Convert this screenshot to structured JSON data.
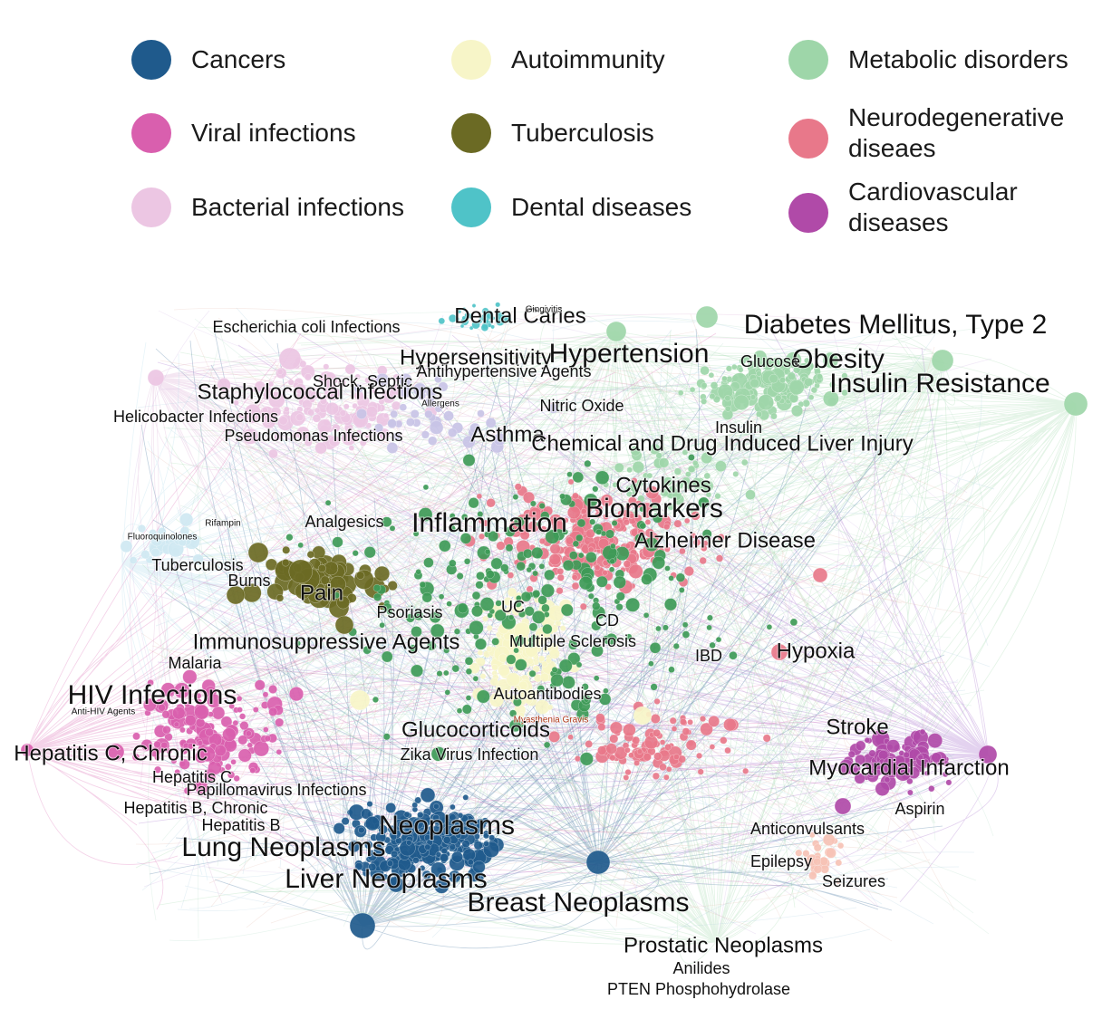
{
  "legend": [
    {
      "label": "Cancers",
      "color": "#1f5a8c"
    },
    {
      "label": "Autoimmunity",
      "color": "#f7f5c8"
    },
    {
      "label": "Metabolic disorders",
      "color": "#9ed6a9"
    },
    {
      "label": "Viral infections",
      "color": "#d95fae"
    },
    {
      "label": "Tuberculosis",
      "color": "#6b6a24"
    },
    {
      "label": "Neurodegenerative\ndiseaes",
      "color": "#e8788a"
    },
    {
      "label": "Bacterial infections",
      "color": "#ecc6e3"
    },
    {
      "label": "Dental diseases",
      "color": "#4fc3c8"
    },
    {
      "label": "Cardiovascular\ndiseases",
      "color": "#b04aa8"
    }
  ],
  "network": {
    "labels": [
      {
        "text": "Dental Caries",
        "size": "m"
      },
      {
        "text": "Gingivitis",
        "size": "xs"
      },
      {
        "text": "Escherichia coli Infections",
        "size": "s"
      },
      {
        "text": "Diabetes Mellitus, Type 2",
        "size": "l"
      },
      {
        "text": "Hypersensitivity",
        "size": "m"
      },
      {
        "text": "Hypertension",
        "size": "l"
      },
      {
        "text": "Obesity",
        "size": "l"
      },
      {
        "text": "Glucose",
        "size": "s"
      },
      {
        "text": "Shock, Septic",
        "size": "s"
      },
      {
        "text": "Antihypertensive Agents",
        "size": "s"
      },
      {
        "text": "Staphylococcal Infections",
        "size": "m"
      },
      {
        "text": "Insulin Resistance",
        "size": "l"
      },
      {
        "text": "Allergens",
        "size": "xs"
      },
      {
        "text": "Nitric Oxide",
        "size": "s"
      },
      {
        "text": "Helicobacter Infections",
        "size": "s"
      },
      {
        "text": "Insulin",
        "size": "s"
      },
      {
        "text": "Pseudomonas Infections",
        "size": "s"
      },
      {
        "text": "Asthma",
        "size": "m"
      },
      {
        "text": "Chemical and Drug Induced Liver Injury",
        "size": "m"
      },
      {
        "text": "Cytokines",
        "size": "m"
      },
      {
        "text": "Biomarkers",
        "size": "l"
      },
      {
        "text": "Rifampin",
        "size": "xs"
      },
      {
        "text": "Analgesics",
        "size": "s"
      },
      {
        "text": "Inflammation",
        "size": "l"
      },
      {
        "text": "Fluoroquinolones",
        "size": "xs"
      },
      {
        "text": "Alzheimer Disease",
        "size": "m"
      },
      {
        "text": "Tuberculosis",
        "size": "s"
      },
      {
        "text": "Burns",
        "size": "s"
      },
      {
        "text": "Pain",
        "size": "m"
      },
      {
        "text": "UC",
        "size": "s"
      },
      {
        "text": "Psoriasis",
        "size": "s"
      },
      {
        "text": "CD",
        "size": "s"
      },
      {
        "text": "Immunosuppressive Agents",
        "size": "m"
      },
      {
        "text": "Multiple Sclerosis",
        "size": "s"
      },
      {
        "text": "IBD",
        "size": "s"
      },
      {
        "text": "Hypoxia",
        "size": "m"
      },
      {
        "text": "Malaria",
        "size": "s"
      },
      {
        "text": "HIV Infections",
        "size": "l"
      },
      {
        "text": "Autoantibodies",
        "size": "s"
      },
      {
        "text": "Anti-HIV Agents",
        "size": "xs"
      },
      {
        "text": "Myasthenia Gravis",
        "size": "xs"
      },
      {
        "text": "Glucocorticoids",
        "size": "m"
      },
      {
        "text": "Stroke",
        "size": "m"
      },
      {
        "text": "Zika Virus Infection",
        "size": "s"
      },
      {
        "text": "Hepatitis C, Chronic",
        "size": "m"
      },
      {
        "text": "Myocardial Infarction",
        "size": "m"
      },
      {
        "text": "Hepatitis C",
        "size": "s"
      },
      {
        "text": "Papillomavirus Infections",
        "size": "s"
      },
      {
        "text": "Hepatitis B, Chronic",
        "size": "s"
      },
      {
        "text": "Aspirin",
        "size": "s"
      },
      {
        "text": "Hepatitis B",
        "size": "s"
      },
      {
        "text": "Neoplasms",
        "size": "l"
      },
      {
        "text": "Anticonvulsants",
        "size": "s"
      },
      {
        "text": "Lung Neoplasms",
        "size": "l"
      },
      {
        "text": "Epilepsy",
        "size": "s"
      },
      {
        "text": "Liver Neoplasms",
        "size": "l"
      },
      {
        "text": "Seizures",
        "size": "s"
      },
      {
        "text": "Breast Neoplasms",
        "size": "l"
      },
      {
        "text": "Prostatic Neoplasms",
        "size": "m"
      },
      {
        "text": "Anilides",
        "size": "s"
      },
      {
        "text": "PTEN Phosphohydrolase",
        "size": "s"
      }
    ]
  }
}
